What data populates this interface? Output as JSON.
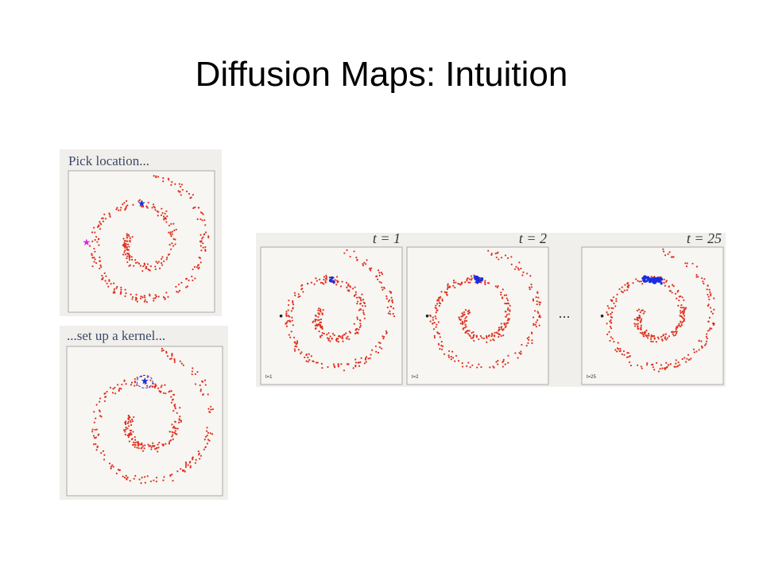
{
  "title": "Diffusion Maps: Intuition",
  "panels": [
    {
      "caption": "Pick location..."
    },
    {
      "caption": "...set up a kernel..."
    }
  ],
  "steps": [
    {
      "label": "t = 1",
      "corner_label": "t=1"
    },
    {
      "label": "t = 2",
      "corner_label": "t=2"
    },
    {
      "label": "t = 25",
      "corner_label": "t=25"
    }
  ],
  "ellipsis": "..."
}
